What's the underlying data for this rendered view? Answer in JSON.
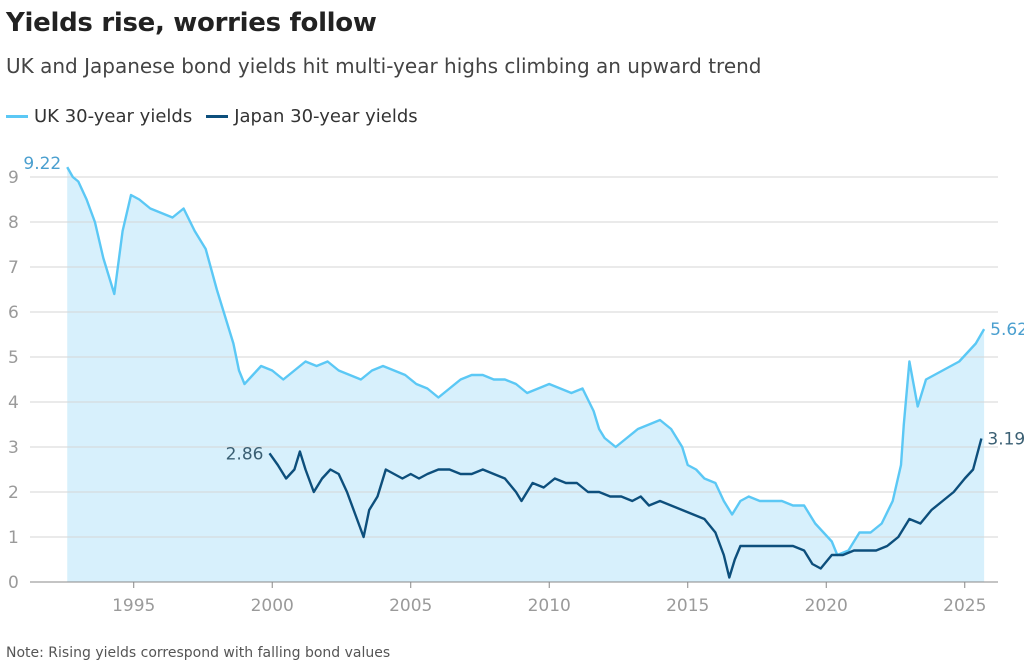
{
  "title": "Yields rise, worries follow",
  "subtitle": "UK and Japanese bond yields hit multi-year highs climbing an upward trend",
  "note": "Note: Rising yields correspond with falling bond values",
  "colors": {
    "uk": "#5bc8f5",
    "uk_fill": "#d7f0fc",
    "japan": "#0d4f7c",
    "grid": "#d6d6d6",
    "uk_label": "#4a9fcf",
    "japan_label": "#3a5f73"
  },
  "chart_data": {
    "type": "line",
    "xlabel": "",
    "ylabel": "",
    "xlim": [
      1991.4,
      2026.2
    ],
    "ylim": [
      0,
      9.6
    ],
    "x_ticks": [
      1995,
      2000,
      2005,
      2010,
      2015,
      2020,
      2025
    ],
    "y_ticks": [
      0,
      1,
      2,
      3,
      4,
      5,
      6,
      7,
      8,
      9
    ],
    "grid": "horizontal",
    "legend": "top-left",
    "series": [
      {
        "name": "UK 30-year yields",
        "area": true,
        "start_label": "9.22",
        "end_label": "5.62",
        "x": [
          1992.6,
          1992.8,
          1993.0,
          1993.3,
          1993.6,
          1993.9,
          1994.1,
          1994.3,
          1994.6,
          1994.9,
          1995.2,
          1995.6,
          1996.0,
          1996.4,
          1996.8,
          1997.2,
          1997.6,
          1998.0,
          1998.3,
          1998.6,
          1998.8,
          1999.0,
          1999.3,
          1999.6,
          2000.0,
          2000.4,
          2000.8,
          2001.2,
          2001.6,
          2002.0,
          2002.4,
          2002.8,
          2003.2,
          2003.6,
          2004.0,
          2004.4,
          2004.8,
          2005.2,
          2005.6,
          2006.0,
          2006.4,
          2006.8,
          2007.2,
          2007.6,
          2008.0,
          2008.4,
          2008.8,
          2009.2,
          2009.6,
          2010.0,
          2010.4,
          2010.8,
          2011.2,
          2011.6,
          2011.8,
          2012.0,
          2012.4,
          2012.8,
          2013.2,
          2013.6,
          2014.0,
          2014.4,
          2014.8,
          2015.0,
          2015.3,
          2015.6,
          2016.0,
          2016.3,
          2016.6,
          2016.9,
          2017.2,
          2017.6,
          2018.0,
          2018.4,
          2018.8,
          2019.2,
          2019.6,
          2019.9,
          2020.2,
          2020.4,
          2020.8,
          2021.2,
          2021.6,
          2022.0,
          2022.4,
          2022.7,
          2022.8,
          2023.0,
          2023.3,
          2023.6,
          2023.9,
          2024.2,
          2024.5,
          2024.8,
          2025.1,
          2025.4,
          2025.7
        ],
        "values": [
          9.22,
          9.0,
          8.9,
          8.5,
          8.0,
          7.2,
          6.8,
          6.4,
          7.8,
          8.6,
          8.5,
          8.3,
          8.2,
          8.1,
          8.3,
          7.8,
          7.4,
          6.5,
          5.9,
          5.3,
          4.7,
          4.4,
          4.6,
          4.8,
          4.7,
          4.5,
          4.7,
          4.9,
          4.8,
          4.9,
          4.7,
          4.6,
          4.5,
          4.7,
          4.8,
          4.7,
          4.6,
          4.4,
          4.3,
          4.1,
          4.3,
          4.5,
          4.6,
          4.6,
          4.5,
          4.5,
          4.4,
          4.2,
          4.3,
          4.4,
          4.3,
          4.2,
          4.3,
          3.8,
          3.4,
          3.2,
          3.0,
          3.2,
          3.4,
          3.5,
          3.6,
          3.4,
          3.0,
          2.6,
          2.5,
          2.3,
          2.2,
          1.8,
          1.5,
          1.8,
          1.9,
          1.8,
          1.8,
          1.8,
          1.7,
          1.7,
          1.3,
          1.1,
          0.9,
          0.6,
          0.7,
          1.1,
          1.1,
          1.3,
          1.8,
          2.6,
          3.5,
          4.9,
          3.9,
          4.5,
          4.6,
          4.7,
          4.8,
          4.9,
          5.1,
          5.3,
          5.62
        ]
      },
      {
        "name": "Japan 30-year yields",
        "area": false,
        "start_label": "2.86",
        "end_label": "3.19",
        "x": [
          1999.9,
          2000.2,
          2000.5,
          2000.8,
          2001.0,
          2001.2,
          2001.5,
          2001.8,
          2002.1,
          2002.4,
          2002.7,
          2003.0,
          2003.3,
          2003.5,
          2003.8,
          2004.1,
          2004.4,
          2004.7,
          2005.0,
          2005.3,
          2005.6,
          2006.0,
          2006.4,
          2006.8,
          2007.2,
          2007.6,
          2008.0,
          2008.4,
          2008.8,
          2009.0,
          2009.4,
          2009.8,
          2010.2,
          2010.6,
          2011.0,
          2011.4,
          2011.8,
          2012.2,
          2012.6,
          2013.0,
          2013.3,
          2013.6,
          2014.0,
          2014.4,
          2014.8,
          2015.2,
          2015.6,
          2016.0,
          2016.3,
          2016.5,
          2016.7,
          2016.9,
          2017.2,
          2017.6,
          2018.0,
          2018.4,
          2018.8,
          2019.2,
          2019.5,
          2019.8,
          2020.2,
          2020.6,
          2021.0,
          2021.4,
          2021.8,
          2022.2,
          2022.6,
          2023.0,
          2023.4,
          2023.8,
          2024.2,
          2024.6,
          2025.0,
          2025.3,
          2025.6
        ],
        "values": [
          2.86,
          2.6,
          2.3,
          2.5,
          2.9,
          2.5,
          2.0,
          2.3,
          2.5,
          2.4,
          2.0,
          1.5,
          1.0,
          1.6,
          1.9,
          2.5,
          2.4,
          2.3,
          2.4,
          2.3,
          2.4,
          2.5,
          2.5,
          2.4,
          2.4,
          2.5,
          2.4,
          2.3,
          2.0,
          1.8,
          2.2,
          2.1,
          2.3,
          2.2,
          2.2,
          2.0,
          2.0,
          1.9,
          1.9,
          1.8,
          1.9,
          1.7,
          1.8,
          1.7,
          1.6,
          1.5,
          1.4,
          1.1,
          0.6,
          0.1,
          0.5,
          0.8,
          0.8,
          0.8,
          0.8,
          0.8,
          0.8,
          0.7,
          0.4,
          0.3,
          0.6,
          0.6,
          0.7,
          0.7,
          0.7,
          0.8,
          1.0,
          1.4,
          1.3,
          1.6,
          1.8,
          2.0,
          2.3,
          2.5,
          3.19
        ]
      }
    ]
  }
}
